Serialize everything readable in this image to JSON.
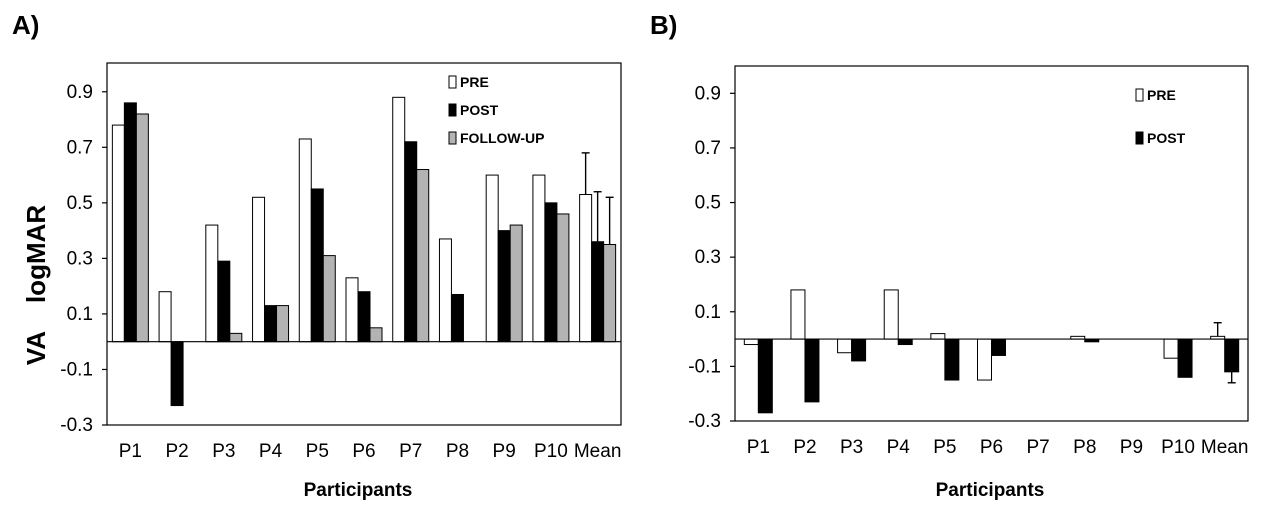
{
  "chart_data": [
    {
      "type": "bar",
      "panel_label": "A)",
      "xlabel": "Participants",
      "ylabel": "VA    logMAR",
      "categories": [
        "P1",
        "P2",
        "P3",
        "P4",
        "P5",
        "P6",
        "P7",
        "P8",
        "P9",
        "P10",
        "Mean"
      ],
      "ylim": [
        -0.3,
        1.0
      ],
      "yticks": [
        0.9,
        0.7,
        0.5,
        0.3,
        0.1,
        -0.1,
        -0.3
      ],
      "ytick_labels": [
        "0.9",
        "0.7",
        "0.5",
        "0.3",
        "0.1",
        "-0.1",
        "-0.3"
      ],
      "grid": false,
      "legend_position": "top-right",
      "series": [
        {
          "name": "PRE",
          "color": "#ffffff",
          "values": [
            0.78,
            0.18,
            0.42,
            0.52,
            0.73,
            0.23,
            0.88,
            0.37,
            0.6,
            0.6,
            0.53
          ],
          "error": [
            null,
            null,
            null,
            null,
            null,
            null,
            null,
            null,
            null,
            null,
            0.15
          ]
        },
        {
          "name": "POST",
          "color": "#000000",
          "values": [
            0.86,
            -0.23,
            0.29,
            0.13,
            0.55,
            0.18,
            0.72,
            0.17,
            0.4,
            0.5,
            0.36
          ],
          "error": [
            null,
            null,
            null,
            null,
            null,
            null,
            null,
            null,
            null,
            null,
            0.18
          ]
        },
        {
          "name": "FOLLOW-UP",
          "color": "#b3b3b3",
          "values": [
            0.82,
            0.0,
            0.03,
            0.13,
            0.31,
            0.05,
            0.62,
            0.0,
            0.42,
            0.46,
            0.35
          ],
          "error": [
            null,
            null,
            null,
            null,
            null,
            null,
            null,
            null,
            null,
            null,
            0.17
          ]
        }
      ]
    },
    {
      "type": "bar",
      "panel_label": "B)",
      "xlabel": "Participants",
      "ylabel": "",
      "categories": [
        "P1",
        "P2",
        "P3",
        "P4",
        "P5",
        "P6",
        "P7",
        "P8",
        "P9",
        "P10",
        "Mean"
      ],
      "ylim": [
        -0.3,
        1.0
      ],
      "yticks": [
        0.9,
        0.7,
        0.5,
        0.3,
        0.1,
        -0.1,
        -0.3
      ],
      "ytick_labels": [
        "0.9",
        "0.7",
        "0.5",
        "0.3",
        "0.1",
        "-0.1",
        "-0.3"
      ],
      "grid": false,
      "legend_position": "top-right",
      "series": [
        {
          "name": "PRE",
          "color": "#ffffff",
          "values": [
            -0.02,
            0.18,
            -0.05,
            0.18,
            0.02,
            -0.15,
            0.0,
            0.01,
            0.0,
            -0.07,
            0.01
          ],
          "error": [
            null,
            null,
            null,
            null,
            null,
            null,
            null,
            null,
            null,
            null,
            0.05
          ]
        },
        {
          "name": "POST",
          "color": "#000000",
          "values": [
            -0.27,
            -0.23,
            -0.08,
            -0.02,
            -0.15,
            -0.06,
            0.0,
            -0.01,
            0.0,
            -0.14,
            -0.12
          ],
          "error": [
            null,
            null,
            null,
            null,
            null,
            null,
            null,
            null,
            null,
            null,
            0.04
          ]
        }
      ]
    }
  ]
}
